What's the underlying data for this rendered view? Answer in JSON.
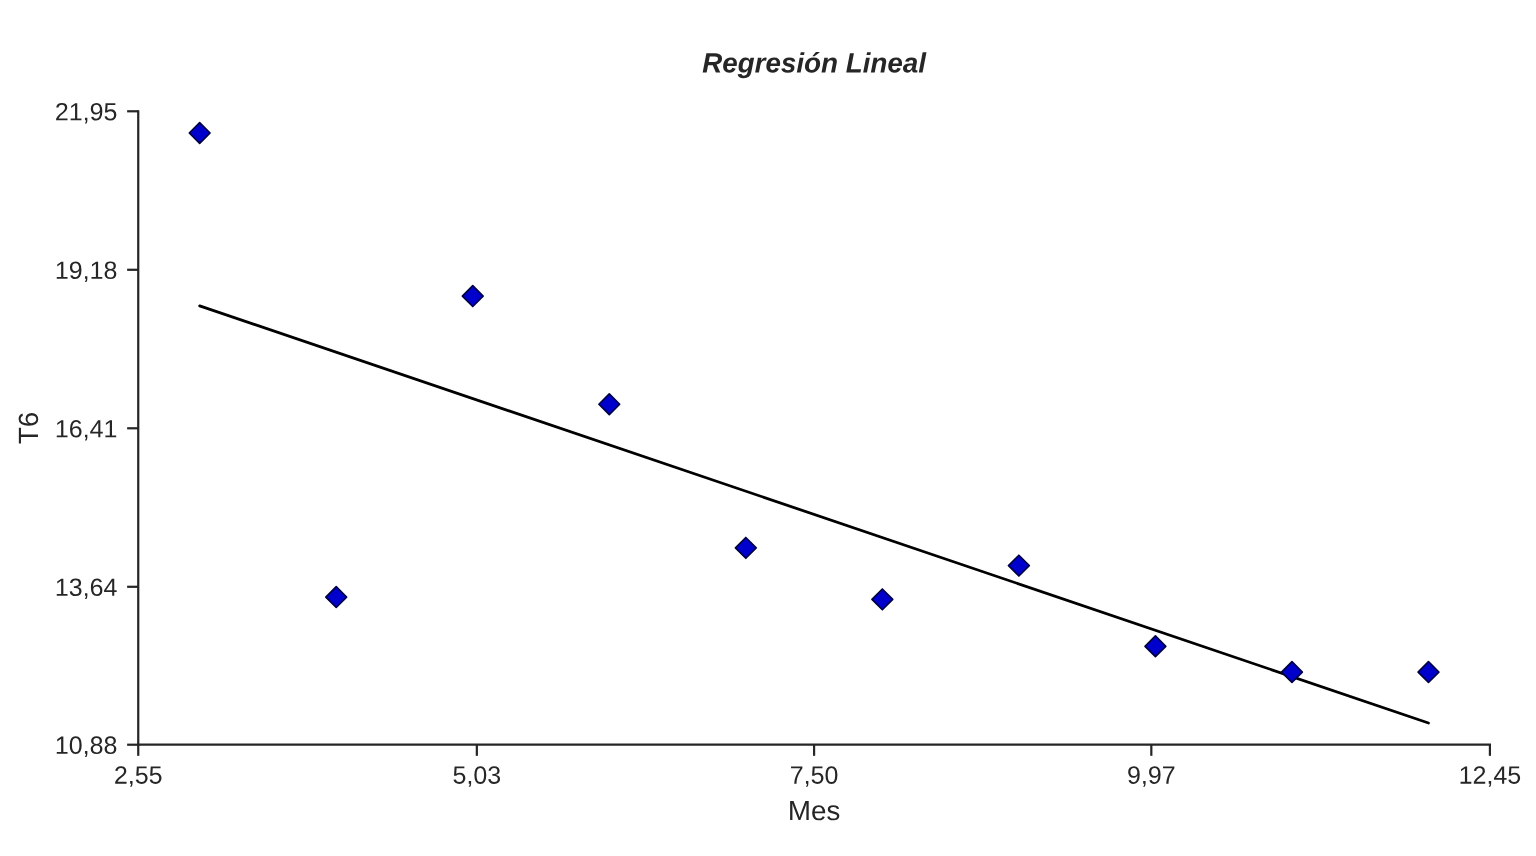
{
  "chart_data": {
    "type": "scatter",
    "title": "Regresión Lineal",
    "xlabel": "Mes",
    "ylabel": "T6",
    "xlim": [
      2.55,
      12.45
    ],
    "ylim": [
      10.88,
      21.95
    ],
    "xticks": [
      {
        "value": 2.55,
        "label": "2,55"
      },
      {
        "value": 5.03,
        "label": "5,03"
      },
      {
        "value": 7.5,
        "label": "7,50"
      },
      {
        "value": 9.97,
        "label": "9,97"
      },
      {
        "value": 12.45,
        "label": "12,45"
      }
    ],
    "yticks": [
      {
        "value": 10.88,
        "label": "10,88"
      },
      {
        "value": 13.64,
        "label": "13,64"
      },
      {
        "value": 16.41,
        "label": "16,41"
      },
      {
        "value": 19.18,
        "label": "19,18"
      },
      {
        "value": 21.95,
        "label": "21,95"
      }
    ],
    "grid": false,
    "marker": "diamond",
    "series": [
      {
        "color": "#0000cc",
        "x": [
          3,
          4,
          5,
          6,
          7,
          8,
          9,
          10,
          11,
          12
        ],
        "values": [
          21.57,
          13.46,
          18.72,
          16.83,
          14.32,
          13.42,
          14.01,
          12.6,
          12.15,
          12.15
        ]
      },
      {
        "type": "line",
        "color": "#000000",
        "marker": "none",
        "line_style": "solid",
        "x": [
          3,
          12
        ],
        "values": [
          18.55,
          11.26
        ]
      }
    ]
  }
}
